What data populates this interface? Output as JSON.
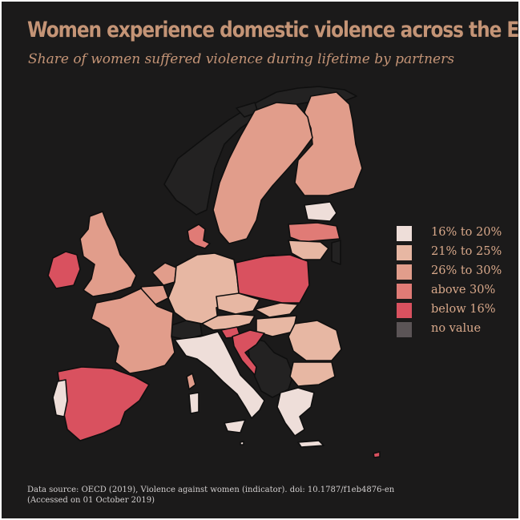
{
  "title": "Women experience domestic violence across the EU",
  "subtitle": "Share of women suffered violence during lifetime by partners",
  "legend": [
    {
      "label": "16% to 20%",
      "color": "#eeded9"
    },
    {
      "label": "21% to 25%",
      "color": "#e7b7a3"
    },
    {
      "label": "26% to 30%",
      "color": "#e19d8b"
    },
    {
      "label": "above 30%",
      "color": "#e07b76"
    },
    {
      "label": "below 16%",
      "color": "#d9515f"
    },
    {
      "label": "no value",
      "color": "#5b5456"
    }
  ],
  "no_data_color": "#232222",
  "border_color": "#0f0f0f",
  "source_line1": "Data source: OECD (2019), Violence against women (indicator). doi: 10.1787/f1eb4876-en",
  "source_line2": "(Accessed on 01 October 2019)"
}
